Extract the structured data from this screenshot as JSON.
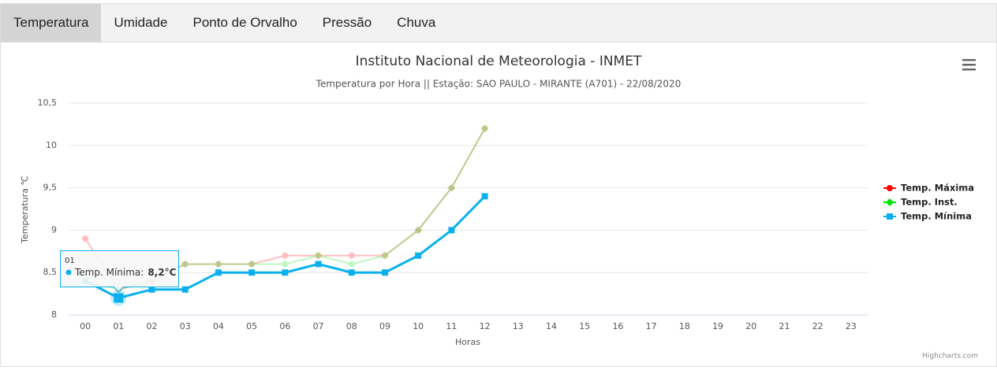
{
  "tabs": [
    "Temperatura",
    "Umidade",
    "Ponto de Orvalho",
    "Pressão",
    "Chuva"
  ],
  "active_tab": 0,
  "chart_data": {
    "type": "line",
    "title": "Instituto Nacional de Meteorologia - INMET",
    "subtitle": "Temperatura por Hora || Estação: SAO PAULO - MIRANTE (A701) - 22/08/2020",
    "y_axis_label": "Temperatura ℃",
    "x_axis_label": "Horas",
    "credit": "Highcharts.com",
    "categories": [
      "00",
      "01",
      "02",
      "03",
      "04",
      "05",
      "06",
      "07",
      "08",
      "09",
      "10",
      "11",
      "12",
      "13",
      "14",
      "15",
      "16",
      "17",
      "18",
      "19",
      "20",
      "21",
      "22",
      "23"
    ],
    "ylim": [
      8,
      10.5
    ],
    "yticks": [
      8,
      {
        "value": 8.5,
        "label": "8,5"
      },
      9,
      {
        "value": 9.5,
        "label": "9,5"
      },
      10,
      {
        "value": 10.5,
        "label": "10,5"
      }
    ],
    "grid": true,
    "legend": "right",
    "highlighted_series": 2,
    "series": [
      {
        "name": "Temp. Máxima",
        "color": "#ff0000",
        "marker": "circle",
        "values": [
          8.9,
          8.3,
          8.4,
          8.6,
          8.6,
          8.6,
          8.7,
          8.7,
          8.7,
          8.7,
          9.0,
          9.5,
          10.2,
          null,
          null,
          null,
          null,
          null,
          null,
          null,
          null,
          null,
          null,
          null
        ]
      },
      {
        "name": "Temp. Inst.",
        "color": "#00e600",
        "marker": "diamond",
        "values": [
          8.4,
          8.3,
          8.4,
          8.6,
          8.6,
          8.6,
          8.6,
          8.7,
          8.6,
          8.7,
          9.0,
          9.5,
          10.2,
          null,
          null,
          null,
          null,
          null,
          null,
          null,
          null,
          null,
          null,
          null
        ]
      },
      {
        "name": "Temp. Mínima",
        "color": "#0ab0ee",
        "marker": "square",
        "values": [
          8.4,
          8.2,
          8.3,
          8.3,
          8.5,
          8.5,
          8.5,
          8.6,
          8.5,
          8.5,
          8.7,
          9.0,
          9.4,
          null,
          null,
          null,
          null,
          null,
          null,
          null,
          null,
          null,
          null,
          null
        ]
      }
    ],
    "tooltip": {
      "series_label": "Temp. Mínima:",
      "value_label": "8,2°C"
    }
  }
}
